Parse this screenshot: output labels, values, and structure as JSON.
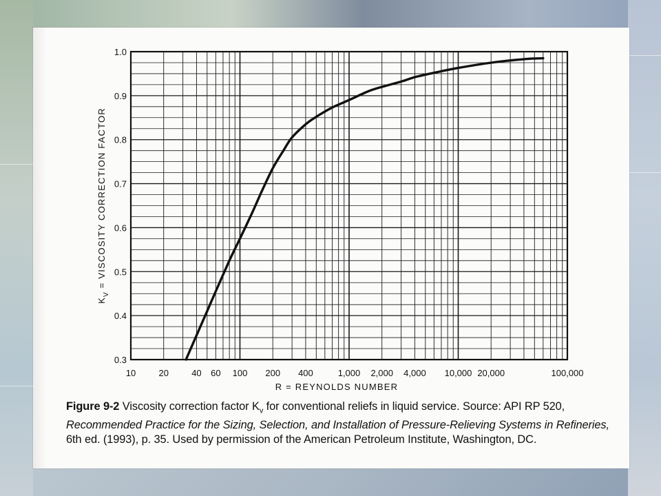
{
  "chart_data": {
    "type": "line",
    "xscale": "log",
    "xlim": [
      10,
      100000
    ],
    "ylim": [
      0.3,
      1.0
    ],
    "xlabel": "R = REYNOLDS NUMBER",
    "ylabel": "K_V = VISCOSITY CORRECTION FACTOR",
    "x_tick_labels": [
      {
        "value": 10,
        "label": "10"
      },
      {
        "value": 20,
        "label": "20"
      },
      {
        "value": 40,
        "label": "40"
      },
      {
        "value": 60,
        "label": "60"
      },
      {
        "value": 100,
        "label": "100"
      },
      {
        "value": 200,
        "label": "200"
      },
      {
        "value": 400,
        "label": "400"
      },
      {
        "value": 1000,
        "label": "1,000"
      },
      {
        "value": 2000,
        "label": "2,000"
      },
      {
        "value": 4000,
        "label": "4,000"
      },
      {
        "value": 10000,
        "label": "10,000"
      },
      {
        "value": 20000,
        "label": "20,000"
      },
      {
        "value": 100000,
        "label": "100,000"
      }
    ],
    "y_tick_labels": [
      {
        "value": 0.3,
        "label": "0.3"
      },
      {
        "value": 0.4,
        "label": "0.4"
      },
      {
        "value": 0.5,
        "label": "0.5"
      },
      {
        "value": 0.6,
        "label": "0.6"
      },
      {
        "value": 0.7,
        "label": "0.7"
      },
      {
        "value": 0.8,
        "label": "0.8"
      },
      {
        "value": 0.9,
        "label": "0.9"
      },
      {
        "value": 1.0,
        "label": "1.0"
      }
    ],
    "grid": true,
    "series": [
      {
        "x": [
          32,
          40,
          50,
          60,
          80,
          100,
          130,
          160,
          200,
          250,
          300,
          400,
          500,
          700,
          1000,
          1500,
          2000,
          3000,
          4000,
          6000,
          10000,
          20000,
          40000,
          60000
        ],
        "y": [
          0.3,
          0.355,
          0.41,
          0.455,
          0.525,
          0.575,
          0.635,
          0.685,
          0.735,
          0.775,
          0.805,
          0.835,
          0.852,
          0.873,
          0.89,
          0.91,
          0.92,
          0.932,
          0.942,
          0.952,
          0.963,
          0.975,
          0.983,
          0.985
        ]
      }
    ]
  },
  "caption": {
    "figure_label": "Figure 9-2",
    "part1": " Viscosity correction factor K",
    "sub": "v",
    "part2": " for conventional reliefs in liquid service. Source: API RP 520, ",
    "title_italic": "Recommended Practice for the Sizing, Selection, and Installation of Pressure-Relieving Systems in Refineries,",
    "part3": " 6th ed. (1993), p. 35. Used by permission of the American Petroleum Institute, Washington, DC."
  },
  "colors": {
    "ink": "#111111",
    "grid": "#1a1a1a",
    "paper": "#fbfbfa"
  }
}
